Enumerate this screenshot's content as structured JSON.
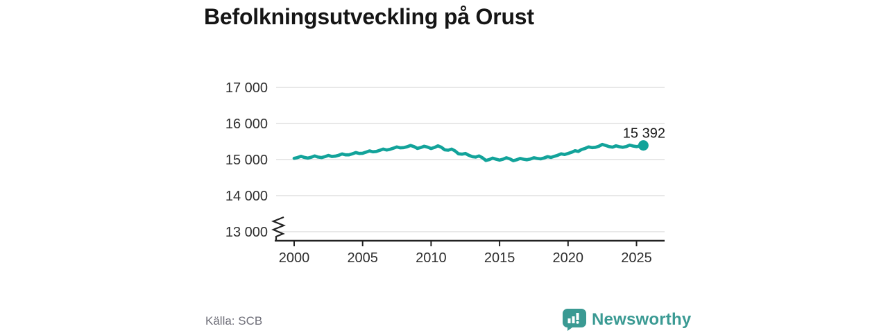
{
  "title": "Befolkningsutveckling på Orust",
  "footer": {
    "source": "Källa: SCB",
    "brand": "Newsworthy"
  },
  "colors": {
    "line": "#12a39a",
    "brand": "#3a9a93",
    "grid": "#dadada",
    "axis": "#222222",
    "title_text": "#151515",
    "muted_text": "#6e6e78"
  },
  "chart_data": {
    "type": "line",
    "title": "Befolkningsutveckling på Orust",
    "xlabel": "",
    "ylabel": "",
    "x_unit": "year (quarterly population, Orust municipality)",
    "xlim": [
      2000,
      2025.5
    ],
    "ylim": [
      13000,
      17000
    ],
    "y_axis_break_below": 13000,
    "grid": "horizontal",
    "legend": "none",
    "yticks": [
      {
        "value": 13000,
        "label": "13 000"
      },
      {
        "value": 14000,
        "label": "14 000"
      },
      {
        "value": 15000,
        "label": "15 000"
      },
      {
        "value": 16000,
        "label": "16 000"
      },
      {
        "value": 17000,
        "label": "17 000"
      }
    ],
    "xticks": [
      {
        "value": 2000,
        "label": "2000"
      },
      {
        "value": 2005,
        "label": "2005"
      },
      {
        "value": 2010,
        "label": "2010"
      },
      {
        "value": 2015,
        "label": "2015"
      },
      {
        "value": 2020,
        "label": "2020"
      },
      {
        "value": 2025,
        "label": "2025"
      }
    ],
    "end_label": "15 392",
    "end_value": 15392,
    "series": [
      {
        "x": [
          2000.0,
          2000.25,
          2000.5,
          2000.75,
          2001.0,
          2001.25,
          2001.5,
          2001.75,
          2002.0,
          2002.25,
          2002.5,
          2002.75,
          2003.0,
          2003.25,
          2003.5,
          2003.75,
          2004.0,
          2004.25,
          2004.5,
          2004.75,
          2005.0,
          2005.25,
          2005.5,
          2005.75,
          2006.0,
          2006.25,
          2006.5,
          2006.75,
          2007.0,
          2007.25,
          2007.5,
          2007.75,
          2008.0,
          2008.25,
          2008.5,
          2008.75,
          2009.0,
          2009.25,
          2009.5,
          2009.75,
          2010.0,
          2010.25,
          2010.5,
          2010.75,
          2011.0,
          2011.25,
          2011.5,
          2011.75,
          2012.0,
          2012.25,
          2012.5,
          2012.75,
          2013.0,
          2013.25,
          2013.5,
          2013.75,
          2014.0,
          2014.25,
          2014.5,
          2014.75,
          2015.0,
          2015.25,
          2015.5,
          2015.75,
          2016.0,
          2016.25,
          2016.5,
          2016.75,
          2017.0,
          2017.25,
          2017.5,
          2017.75,
          2018.0,
          2018.25,
          2018.5,
          2018.75,
          2019.0,
          2019.25,
          2019.5,
          2019.75,
          2020.0,
          2020.25,
          2020.5,
          2020.75,
          2021.0,
          2021.25,
          2021.5,
          2021.75,
          2022.0,
          2022.25,
          2022.5,
          2022.75,
          2023.0,
          2023.25,
          2023.5,
          2023.75,
          2024.0,
          2024.25,
          2024.5,
          2024.75,
          2025.0,
          2025.25,
          2025.5
        ],
        "y": [
          15035,
          15055,
          15090,
          15060,
          15040,
          15065,
          15100,
          15070,
          15055,
          15080,
          15115,
          15085,
          15095,
          15120,
          15155,
          15130,
          15130,
          15160,
          15195,
          15170,
          15175,
          15205,
          15240,
          15215,
          15225,
          15255,
          15290,
          15265,
          15285,
          15315,
          15350,
          15325,
          15330,
          15355,
          15390,
          15360,
          15310,
          15335,
          15370,
          15345,
          15305,
          15335,
          15380,
          15340,
          15270,
          15260,
          15290,
          15240,
          15160,
          15150,
          15170,
          15120,
          15080,
          15070,
          15100,
          15050,
          14975,
          15000,
          15040,
          15010,
          14985,
          15010,
          15050,
          15020,
          14970,
          14995,
          15030,
          15010,
          14995,
          15015,
          15050,
          15030,
          15020,
          15045,
          15080,
          15060,
          15090,
          15120,
          15160,
          15140,
          15170,
          15200,
          15245,
          15225,
          15280,
          15310,
          15350,
          15330,
          15340,
          15370,
          15420,
          15390,
          15360,
          15345,
          15380,
          15355,
          15340,
          15360,
          15400,
          15375,
          15360,
          15375,
          15392
        ]
      }
    ]
  }
}
